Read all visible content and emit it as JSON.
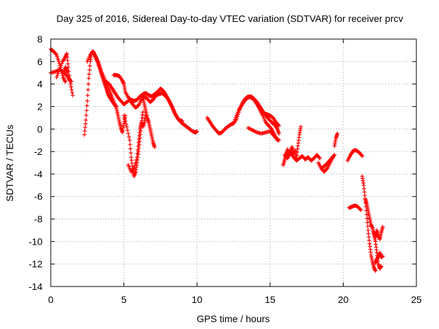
{
  "chart_data": {
    "type": "scatter",
    "title": "Day 325 of 2016, Sidereal Day-to-day VTEC variation (SDTVAR) for receiver prcv",
    "xlabel": "GPS time / hours",
    "ylabel": "SDTVAR / TECUs",
    "xlim": [
      0,
      25
    ],
    "ylim": [
      -14,
      8
    ],
    "xticks": [
      0,
      5,
      10,
      15,
      20,
      25
    ],
    "yticks": [
      -14,
      -12,
      -10,
      -8,
      -6,
      -4,
      -2,
      0,
      2,
      4,
      6,
      8
    ],
    "grid": true,
    "marker": "plus",
    "color": "#ff0000",
    "segments": [
      {
        "x": [
          0.0,
          0.2,
          0.4,
          0.55,
          0.7,
          0.85,
          1.0
        ],
        "y": [
          7.1,
          6.9,
          6.6,
          6.0,
          5.3,
          4.6,
          4.2
        ]
      },
      {
        "x": [
          0.0,
          0.3,
          0.6,
          0.9,
          1.2,
          1.4
        ],
        "y": [
          5.0,
          5.1,
          5.3,
          5.0,
          4.6,
          4.2
        ]
      },
      {
        "x": [
          0.4,
          0.6,
          0.8,
          1.0,
          1.1,
          1.2,
          1.35,
          1.5
        ],
        "y": [
          4.6,
          5.3,
          6.0,
          6.4,
          6.7,
          5.5,
          4.0,
          3.0
        ]
      },
      {
        "x": [
          0.9,
          1.0,
          1.1,
          1.2,
          1.3
        ],
        "y": [
          5.0,
          5.5,
          5.2,
          4.6,
          4.3
        ]
      },
      {
        "x": [
          2.3,
          2.4,
          2.5,
          2.6,
          2.7,
          2.8,
          2.9,
          3.0,
          3.1,
          3.2,
          3.3,
          3.4,
          3.5,
          3.6,
          3.7,
          3.8,
          3.9,
          4.0,
          4.1,
          4.2,
          4.3,
          4.4,
          4.5
        ],
        "y": [
          -0.5,
          0.8,
          2.5,
          4.5,
          6.0,
          6.8,
          6.9,
          6.6,
          6.3,
          6.0,
          5.6,
          5.2,
          4.8,
          4.4,
          4.0,
          3.6,
          3.2,
          2.9,
          2.7,
          2.5,
          2.3,
          2.1,
          2.0
        ]
      },
      {
        "x": [
          2.5,
          2.7,
          2.9,
          3.1,
          3.3,
          3.5,
          3.7,
          3.9,
          4.1,
          4.3,
          4.5,
          4.6,
          4.7,
          4.8,
          4.9,
          5.0,
          5.1
        ],
        "y": [
          6.0,
          6.6,
          6.8,
          6.4,
          5.8,
          5.0,
          4.4,
          3.8,
          3.2,
          2.5,
          1.8,
          1.2,
          0.6,
          0.1,
          -0.3,
          0.5,
          1.2
        ]
      },
      {
        "x": [
          4.3,
          4.5,
          4.7,
          4.9,
          5.0,
          5.1,
          5.3,
          5.5,
          5.7,
          5.9,
          6.1,
          6.3,
          6.5,
          6.7,
          6.9,
          7.1,
          7.3,
          7.5,
          7.7,
          7.9,
          8.1,
          8.3,
          8.5,
          8.7,
          8.9,
          9.1,
          9.3,
          9.5,
          9.7,
          9.9,
          10.0
        ],
        "y": [
          4.8,
          4.8,
          4.7,
          4.3,
          4.0,
          3.3,
          2.8,
          2.6,
          2.5,
          2.6,
          2.9,
          3.1,
          3.2,
          3.0,
          2.9,
          3.1,
          3.3,
          3.6,
          3.4,
          3.0,
          2.5,
          2.0,
          1.4,
          0.9,
          0.6,
          0.4,
          0.2,
          0.0,
          -0.2,
          -0.3,
          -0.2
        ]
      },
      {
        "x": [
          3.8,
          4.0,
          4.2,
          4.4,
          4.6,
          4.8,
          5.0,
          5.2,
          5.4,
          5.6,
          5.8,
          6.0,
          6.2,
          6.4,
          6.6,
          6.8,
          7.0,
          7.2,
          7.4,
          7.6,
          7.8,
          8.0,
          8.2,
          8.4,
          8.6,
          8.8,
          9.0
        ],
        "y": [
          4.2,
          4.0,
          3.6,
          3.2,
          2.8,
          2.5,
          2.2,
          2.4,
          2.6,
          2.2,
          1.9,
          2.1,
          2.6,
          2.9,
          2.7,
          2.4,
          2.6,
          3.0,
          3.1,
          3.2,
          3.0,
          2.7,
          2.2,
          1.6,
          1.1,
          0.8,
          0.7
        ]
      },
      {
        "x": [
          5.0,
          5.2,
          5.4,
          5.5,
          5.6,
          5.7,
          5.8,
          5.9,
          6.0,
          6.1,
          6.2,
          6.3
        ],
        "y": [
          1.2,
          0.2,
          -1.0,
          -2.5,
          -3.6,
          -4.2,
          -3.8,
          -3.0,
          -2.0,
          -0.8,
          0.5,
          1.5
        ]
      },
      {
        "x": [
          5.3,
          5.5,
          5.7,
          5.9,
          6.0,
          6.1,
          6.2,
          6.3,
          6.4,
          6.5
        ],
        "y": [
          -3.2,
          -3.8,
          -3.5,
          -2.5,
          -1.2,
          0.0,
          0.6,
          0.2,
          0.6,
          1.2
        ]
      },
      {
        "x": [
          6.3,
          6.4,
          6.5,
          6.6,
          6.7,
          6.8,
          6.9,
          7.0,
          7.1
        ],
        "y": [
          2.8,
          2.2,
          1.6,
          1.0,
          0.6,
          0.0,
          -0.6,
          -1.2,
          -1.6
        ]
      },
      {
        "x": [
          10.7,
          10.9,
          11.1,
          11.3,
          11.5,
          11.7,
          11.9,
          12.1,
          12.3,
          12.5,
          12.7,
          12.9,
          13.1,
          13.3,
          13.5,
          13.7,
          13.9,
          14.1,
          14.3,
          14.5,
          14.7,
          14.9,
          15.1,
          15.3,
          15.5
        ],
        "y": [
          1.0,
          0.6,
          0.2,
          -0.1,
          -0.4,
          -0.3,
          0.0,
          0.2,
          0.4,
          0.5,
          0.9,
          1.7,
          2.3,
          2.7,
          2.9,
          2.8,
          2.6,
          2.2,
          1.7,
          1.2,
          0.6,
          0.3,
          0.0,
          -0.5,
          -1.0
        ]
      },
      {
        "x": [
          12.5,
          12.7,
          12.9,
          13.1,
          13.3,
          13.5,
          13.7,
          13.9,
          14.1,
          14.3,
          14.5,
          14.7,
          14.9,
          15.1,
          15.3,
          15.5,
          15.6
        ],
        "y": [
          0.5,
          1.2,
          1.8,
          2.2,
          2.6,
          2.8,
          2.9,
          2.7,
          2.4,
          2.0,
          1.6,
          1.2,
          0.9,
          0.6,
          0.4,
          0.0,
          -0.4
        ]
      },
      {
        "x": [
          13.5,
          13.8,
          14.1,
          14.4,
          14.7,
          15.0,
          15.2,
          15.4,
          15.6
        ],
        "y": [
          0.1,
          -0.1,
          -0.3,
          -0.4,
          -0.3,
          -0.2,
          -0.5,
          -0.8,
          -1.0
        ]
      },
      {
        "x": [
          14.6,
          14.8,
          15.0,
          15.2,
          15.4,
          15.6
        ],
        "y": [
          1.4,
          1.3,
          1.2,
          1.0,
          0.6,
          0.3
        ]
      },
      {
        "x": [
          15.9,
          16.0,
          16.1,
          16.2,
          16.3,
          16.4,
          16.5,
          16.6,
          16.7,
          16.8,
          16.9,
          17.0,
          17.1
        ],
        "y": [
          -3.2,
          -2.7,
          -2.2,
          -1.8,
          -2.3,
          -2.0,
          -1.6,
          -2.2,
          -1.9,
          -2.6,
          -1.5,
          -0.5,
          0.2
        ]
      },
      {
        "x": [
          16.0,
          16.2,
          16.4,
          16.6,
          16.8,
          17.0,
          17.2,
          17.4,
          17.6,
          17.8,
          18.0,
          18.2,
          18.4
        ],
        "y": [
          -2.3,
          -2.6,
          -2.1,
          -2.5,
          -2.8,
          -2.6,
          -2.4,
          -2.7,
          -2.5,
          -2.8,
          -2.6,
          -2.3,
          -2.6
        ]
      },
      {
        "x": [
          18.3,
          18.5,
          18.7,
          18.9,
          19.1,
          19.3
        ],
        "y": [
          -3.0,
          -3.5,
          -3.8,
          -3.5,
          -3.0,
          -2.5
        ]
      },
      {
        "x": [
          18.6,
          18.8,
          19.0,
          19.2,
          19.4
        ],
        "y": [
          -3.4,
          -3.2,
          -2.9,
          -2.6,
          -2.3
        ]
      },
      {
        "x": [
          19.4,
          19.5,
          19.6
        ],
        "y": [
          -1.5,
          -0.8,
          -0.4
        ]
      },
      {
        "x": [
          20.3,
          20.5,
          20.7,
          20.9,
          21.1,
          21.3
        ],
        "y": [
          -2.8,
          -2.3,
          -1.9,
          -1.9,
          -2.1,
          -2.4
        ]
      },
      {
        "x": [
          20.4,
          20.6,
          20.8,
          21.0,
          21.2
        ],
        "y": [
          -7.0,
          -6.9,
          -6.8,
          -6.9,
          -7.2
        ]
      },
      {
        "x": [
          21.3,
          21.4,
          21.5,
          21.6,
          21.7,
          21.8,
          21.9,
          22.0,
          22.1,
          22.2
        ],
        "y": [
          -4.2,
          -5.0,
          -6.2,
          -7.6,
          -9.0,
          -10.2,
          -11.2,
          -11.8,
          -12.3,
          -12.6
        ]
      },
      {
        "x": [
          21.5,
          21.6,
          21.7,
          21.8,
          21.9,
          22.0,
          22.1,
          22.2,
          22.3,
          22.4,
          22.5,
          22.6
        ],
        "y": [
          -6.2,
          -6.6,
          -7.2,
          -7.9,
          -8.5,
          -8.8,
          -9.4,
          -10.0,
          -11.0,
          -12.0,
          -12.4,
          -12.2
        ]
      },
      {
        "x": [
          22.1,
          22.2,
          22.3,
          22.4,
          22.5,
          22.6,
          22.7
        ],
        "y": [
          -9.2,
          -9.6,
          -9.0,
          -9.5,
          -9.8,
          -9.2,
          -8.7
        ]
      },
      {
        "x": [
          22.2,
          22.3,
          22.4,
          22.5,
          22.6,
          22.7
        ],
        "y": [
          -11.9,
          -11.6,
          -11.3,
          -11.0,
          -11.4,
          -11.3
        ]
      }
    ]
  }
}
